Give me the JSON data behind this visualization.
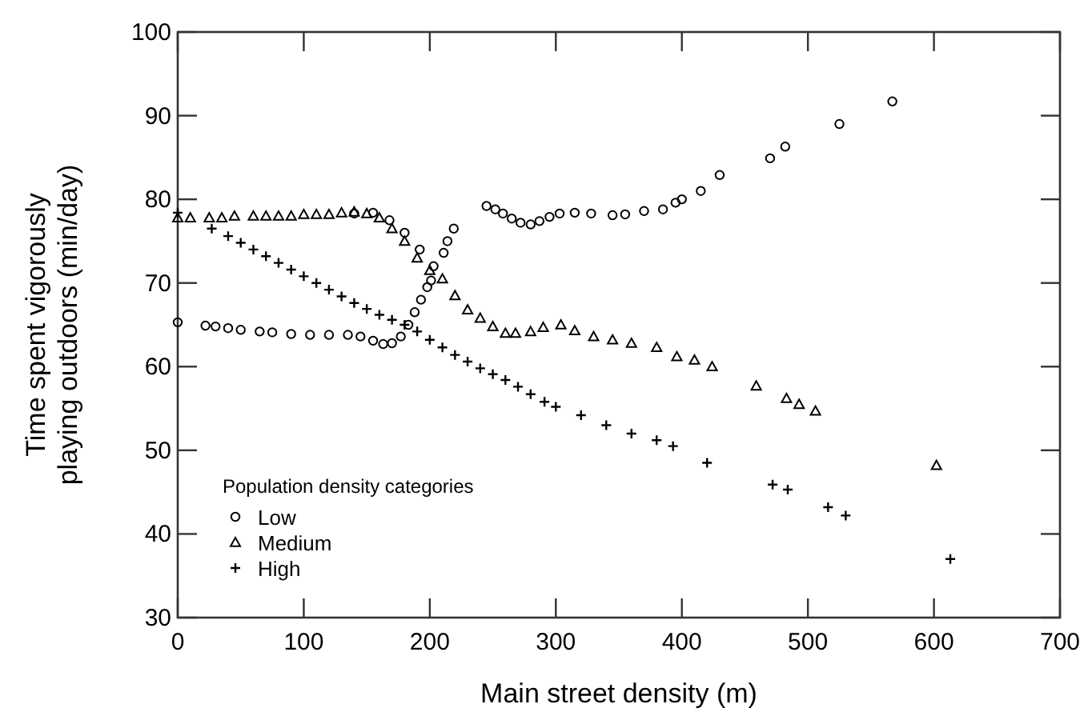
{
  "chart_data": {
    "type": "scatter",
    "xlabel": "Main street density (m)",
    "ylabel": "Time spent vigorously playing outdoors (min/day)",
    "legend_title": "Population density categories",
    "legend": "bottom left",
    "grid": false,
    "xlim": [
      0,
      700
    ],
    "xticks": [
      0,
      100,
      200,
      300,
      400,
      500,
      600,
      700
    ],
    "ylim": [
      30,
      100
    ],
    "yticks": [
      30,
      40,
      50,
      60,
      70,
      80,
      90,
      100
    ],
    "series": [
      {
        "name": "Low",
        "color": "#000000",
        "marker": "circle",
        "x": [
          0,
          22,
          30,
          40,
          50,
          65,
          75,
          90,
          105,
          120,
          135,
          145,
          155,
          163,
          170,
          177,
          183,
          188,
          193,
          198,
          201,
          211,
          214,
          219,
          140,
          155,
          168,
          180,
          192,
          203,
          245,
          252,
          258,
          265,
          272,
          280,
          287,
          295,
          303,
          315,
          328,
          345,
          355,
          370,
          385,
          395,
          400,
          415,
          430,
          470,
          482,
          525,
          567
        ],
        "values": [
          65.3,
          64.9,
          64.8,
          64.6,
          64.4,
          64.2,
          64.1,
          63.9,
          63.8,
          63.8,
          63.8,
          63.6,
          63.1,
          62.7,
          62.8,
          63.6,
          65,
          66.5,
          68,
          69.5,
          70.3,
          73.6,
          75,
          76.5,
          78.3,
          78.4,
          77.5,
          76,
          74,
          72,
          79.2,
          78.8,
          78.3,
          77.7,
          77.2,
          77,
          77.4,
          77.9,
          78.3,
          78.4,
          78.3,
          78.1,
          78.2,
          78.6,
          78.8,
          79.6,
          80,
          81,
          82.9,
          84.9,
          86.3,
          89,
          91.7
        ]
      },
      {
        "name": "Medium",
        "color": "#000000",
        "marker": "triangle",
        "x": [
          0,
          10,
          25,
          35,
          45,
          60,
          70,
          80,
          90,
          100,
          110,
          120,
          130,
          140,
          150,
          160,
          170,
          180,
          190,
          200,
          210,
          220,
          230,
          240,
          250,
          260,
          268,
          280,
          290,
          304,
          315,
          330,
          345,
          360,
          380,
          396,
          410,
          424,
          459,
          483,
          493,
          506,
          602
        ],
        "values": [
          77.8,
          77.8,
          77.8,
          77.8,
          78,
          78,
          78,
          78,
          78,
          78.2,
          78.2,
          78.2,
          78.4,
          78.5,
          78.3,
          77.8,
          76.5,
          75,
          73,
          71.5,
          70.5,
          68.5,
          66.8,
          65.8,
          64.8,
          64,
          64,
          64.2,
          64.7,
          65,
          64.3,
          63.6,
          63.2,
          62.8,
          62.3,
          61.2,
          60.8,
          60,
          57.7,
          56.2,
          55.5,
          54.7,
          48.2
        ]
      },
      {
        "name": "High",
        "color": "#000000",
        "marker": "cross",
        "x": [
          0,
          27,
          40,
          50,
          60,
          70,
          80,
          90,
          100,
          110,
          120,
          130,
          140,
          150,
          160,
          170,
          180,
          190,
          200,
          210,
          220,
          230,
          240,
          250,
          260,
          270,
          280,
          291,
          300,
          320,
          340,
          360,
          380,
          393,
          420,
          472,
          484,
          516,
          530,
          613
        ],
        "values": [
          78.4,
          76.5,
          75.6,
          74.8,
          74,
          73.2,
          72.4,
          71.6,
          70.8,
          70,
          69.2,
          68.4,
          67.6,
          66.9,
          66.2,
          65.6,
          65,
          64.2,
          63.2,
          62.3,
          61.4,
          60.6,
          59.8,
          59.1,
          58.4,
          57.6,
          56.7,
          55.8,
          55.2,
          54.2,
          53,
          52,
          51.2,
          50.5,
          48.5,
          45.9,
          45.3,
          43.2,
          42.2,
          37
        ]
      }
    ]
  }
}
